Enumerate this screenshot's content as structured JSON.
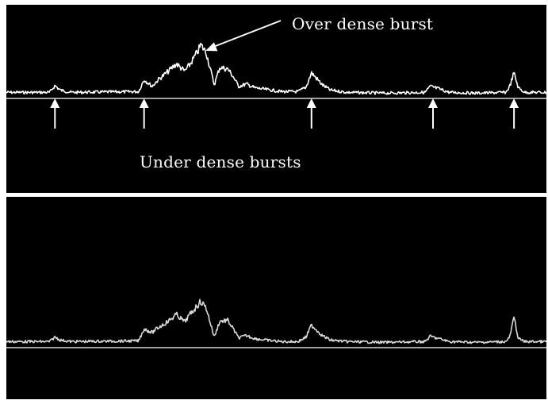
{
  "annotations": {
    "over": "Over dense burst",
    "under": "Under dense bursts"
  },
  "colors": {
    "background": "#000000",
    "trace_top": "#ffffff",
    "trace_bottom": "#d9d9d9",
    "baseline": "#ffffff",
    "arrows": "#ffffff"
  },
  "chart_data": [
    {
      "type": "line",
      "title": "",
      "xlabel": "",
      "ylabel": "",
      "xlim": [
        0,
        100
      ],
      "ylim": [
        0,
        10
      ],
      "grid": false,
      "under_dense_burst_positions": [
        9,
        25.5,
        56.5,
        79,
        94
      ],
      "over_dense_burst_position": 36,
      "series": [
        {
          "x": [
            0,
            8,
            9,
            10,
            12,
            24.5,
            25.5,
            27,
            28,
            30,
            31.5,
            33,
            34,
            35.5,
            36,
            37,
            38.5,
            39.5,
            41,
            42,
            43,
            44.5,
            46,
            48,
            51,
            54,
            55.5,
            56.5,
            58.5,
            60,
            63,
            70,
            77.5,
            78.5,
            80,
            82,
            87,
            92.5,
            93.2,
            94,
            94.8,
            96,
            100
          ],
          "y": [
            0.8,
            0.8,
            1.7,
            1.1,
            0.8,
            0.9,
            2.5,
            1.6,
            2.4,
            3.6,
            4.6,
            3.6,
            4.5,
            6.3,
            7.1,
            6.1,
            1.8,
            4.1,
            3.9,
            2.9,
            1.6,
            1.9,
            1.4,
            1.2,
            0.9,
            0.9,
            1.5,
            3.4,
            1.8,
            1.1,
            0.8,
            0.7,
            0.8,
            1.6,
            1.3,
            0.8,
            0.7,
            0.8,
            1.6,
            3.4,
            1.4,
            0.8,
            0.8
          ]
        }
      ]
    },
    {
      "type": "line",
      "title": "",
      "xlabel": "",
      "ylabel": "",
      "xlim": [
        0,
        100
      ],
      "ylim": [
        0,
        10
      ],
      "grid": false,
      "series": [
        {
          "x": [
            0,
            8,
            9,
            10,
            12,
            24.5,
            25.5,
            27,
            28,
            30,
            31.5,
            33,
            34,
            35.5,
            36,
            37,
            38.5,
            39.5,
            41,
            42,
            43,
            44.5,
            46,
            48,
            51,
            54,
            55.5,
            56.5,
            58.5,
            60,
            63,
            70,
            77.5,
            78.5,
            80,
            82,
            87,
            92.5,
            93.2,
            94,
            94.8,
            96,
            100
          ],
          "y": [
            0.8,
            0.8,
            1.4,
            1.0,
            0.8,
            0.9,
            2.5,
            2.0,
            2.6,
            3.5,
            4.4,
            3.4,
            4.4,
            5.7,
            6.1,
            5.3,
            1.4,
            3.5,
            3.6,
            2.5,
            1.3,
            1.6,
            1.2,
            1.0,
            0.8,
            0.8,
            1.4,
            3.0,
            1.6,
            1.0,
            0.8,
            0.7,
            0.8,
            1.5,
            1.2,
            0.8,
            0.7,
            0.8,
            1.4,
            4.0,
            1.2,
            0.8,
            0.8
          ]
        }
      ]
    }
  ]
}
